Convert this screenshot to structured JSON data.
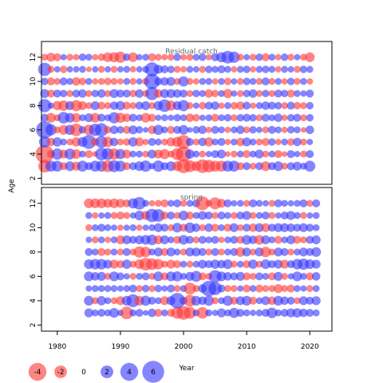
{
  "chart_data": {
    "type": "scatter",
    "subtype": "bubble",
    "ylabel": "Age",
    "xlabel": "Year",
    "xlim": [
      1977.5,
      2023.5
    ],
    "x_ticks": [
      "1980",
      "1990",
      "2000",
      "2010",
      "2020"
    ],
    "y_ticks": [
      "2",
      "4",
      "6",
      "8",
      "10",
      "12"
    ],
    "positive_color": "#3333ff",
    "negative_color": "#ff3333",
    "fill_opacity": 0.6,
    "legend": {
      "placement": "bottom-left",
      "entries": [
        {
          "label": "-4",
          "value": -4
        },
        {
          "label": "-2",
          "value": -2
        },
        {
          "label": "0",
          "value": 0
        },
        {
          "label": "2",
          "value": 2
        },
        {
          "label": "4",
          "value": 4
        },
        {
          "label": "6",
          "value": 6
        }
      ]
    },
    "panels": [
      {
        "title": "Residual catch",
        "ylim": [
          1.5,
          13.3
        ],
        "years": [
          1978,
          1979,
          1980,
          1981,
          1982,
          1983,
          1984,
          1985,
          1986,
          1987,
          1988,
          1989,
          1990,
          1991,
          1992,
          1993,
          1994,
          1995,
          1996,
          1997,
          1998,
          1999,
          2000,
          2001,
          2002,
          2003,
          2004,
          2005,
          2006,
          2007,
          2008,
          2009,
          2010,
          2011,
          2012,
          2013,
          2014,
          2015,
          2016,
          2017,
          2018,
          2019,
          2020
        ],
        "ages": [
          3,
          4,
          5,
          6,
          7,
          8,
          9,
          10,
          11,
          12
        ],
        "residuals": [
          [
            -2.0,
            1.5,
            1.5,
            -0.8,
            1.2,
            -1.0,
            1.5,
            0.8,
            1.5,
            1.5,
            -1.8,
            1.8,
            1.5,
            -0.8,
            0.8,
            1.2,
            1.6,
            0.5,
            1.6,
            0.8,
            1.2,
            -1.2,
            -2.5,
            -1.8,
            -1.2,
            -2.3,
            -2.0,
            -1.5,
            -1.5,
            1.5,
            1.5,
            -0.8,
            0.8,
            -0.6,
            0.8,
            -1.2,
            0.8,
            1.2,
            -0.6,
            0.8,
            1.0,
            0.6,
            1.5
          ],
          [
            -4.2,
            -0.8,
            1.6,
            -1.0,
            1.5,
            -1.2,
            0.6,
            -0.8,
            -0.4,
            2.0,
            1.8,
            -1.6,
            1.3,
            -1.0,
            0.6,
            0.6,
            -0.6,
            1.0,
            -1.0,
            -1.3,
            -0.6,
            -1.8,
            -2.9,
            1.1,
            0.6,
            -0.6,
            0.5,
            0.8,
            1.0,
            -0.4,
            -0.6,
            0.6,
            -0.8,
            0.6,
            1.0,
            -0.6,
            0.6,
            -0.8,
            -0.4,
            0.8,
            0.5,
            -0.6,
            0.8
          ],
          [
            1.6,
            -0.9,
            1.1,
            0.6,
            -0.6,
            -1.1,
            1.2,
            2.5,
            -0.8,
            1.8,
            -1.4,
            0.9,
            -0.6,
            -0.7,
            1.1,
            -1.0,
            -0.5,
            0.8,
            0.6,
            -0.6,
            -1.0,
            -1.3,
            -2.4,
            0.8,
            -0.6,
            0.9,
            -1.1,
            0.6,
            0.8,
            -0.5,
            0.6,
            -0.9,
            1.0,
            0.6,
            -0.6,
            -0.8,
            0.7,
            -0.5,
            0.6,
            -0.7,
            0.9,
            -0.6,
            0.5
          ],
          [
            3.7,
            1.6,
            -0.6,
            -1.2,
            1.3,
            -2.0,
            0.7,
            -1.4,
            1.9,
            2.2,
            -0.7,
            0.9,
            0.7,
            -0.8,
            1.0,
            0.7,
            0.4,
            -0.9,
            1.3,
            0.6,
            -0.8,
            0.8,
            1.2,
            0.4,
            0.7,
            0.9,
            -0.5,
            0.8,
            0.6,
            -0.5,
            0.6,
            0.9,
            -0.6,
            0.7,
            0.5,
            -0.6,
            0.8,
            0.6,
            -0.5,
            0.7,
            0.6,
            -0.4,
            0.9
          ],
          [
            0.8,
            -1.2,
            -0.6,
            1.7,
            1.2,
            -1.1,
            0.6,
            1.0,
            -1.2,
            0.8,
            0.6,
            1.6,
            -1.3,
            -0.9,
            0.8,
            0.6,
            -1.2,
            -0.8,
            0.5,
            0.6,
            0.5,
            0.7,
            0.6,
            -0.9,
            -0.7,
            0.5,
            0.6,
            -0.8,
            0.6,
            0.7,
            -0.6,
            0.7,
            0.8,
            0.7,
            -0.6,
            0.8,
            0.6,
            0.9,
            -0.5,
            0.7,
            0.8,
            -0.6,
            0.7
          ],
          [
            2.2,
            0.5,
            -1.1,
            -1.4,
            1.0,
            -1.6,
            -1.0,
            -0.6,
            1.0,
            -0.8,
            -0.6,
            0.9,
            1.1,
            -0.8,
            -0.6,
            0.8,
            1.0,
            -0.6,
            1.1,
            2.0,
            -1.3,
            1.0,
            1.6,
            -0.6,
            0.5,
            -0.7,
            0.8,
            0.9,
            -0.5,
            0.6,
            -0.7,
            -0.9,
            0.8,
            -0.5,
            0.6,
            0.9,
            0.8,
            0.7,
            -0.6,
            0.8,
            -0.7,
            -0.6,
            0.7
          ],
          [
            1.0,
            -0.8,
            0.8,
            0.7,
            -0.6,
            0.8,
            0.9,
            -0.6,
            0.7,
            0.9,
            -0.6,
            1.0,
            0.8,
            0.8,
            -0.7,
            0.9,
            -0.6,
            2.2,
            -0.9,
            1.0,
            1.0,
            0.9,
            0.8,
            -0.6,
            0.7,
            0.6,
            -0.9,
            -0.7,
            0.6,
            -1.1,
            0.5,
            -0.6,
            0.7,
            0.9,
            -0.6,
            0.7,
            -0.6,
            0.8,
            0.7,
            -0.8,
            0.6,
            0.5,
            0.8
          ],
          [
            0.7,
            -0.8,
            -0.6,
            0.8,
            0.6,
            -0.9,
            -0.7,
            0.6,
            -0.5,
            -0.6,
            -0.7,
            -0.6,
            -0.5,
            0.6,
            -0.6,
            0.5,
            -0.6,
            3.0,
            0.8,
            0.9,
            1.0,
            -0.6,
            1.3,
            -0.6,
            -0.5,
            0.6,
            0.6,
            -0.5,
            0.6,
            -0.7,
            0.5,
            -0.6,
            0.7,
            0.6,
            -0.6,
            0.8,
            -0.6,
            0.6,
            -0.5,
            0.7,
            -0.6,
            0.6,
            -0.5
          ],
          [
            2.2,
            -0.6,
            0.5,
            -0.7,
            0.5,
            0.5,
            0.6,
            -0.4,
            0.5,
            -0.6,
            0.5,
            -0.6,
            0.5,
            0.6,
            -0.5,
            0.5,
            0.6,
            2.5,
            1.0,
            0.8,
            0.7,
            -0.6,
            -0.5,
            0.6,
            0.5,
            -0.6,
            0.7,
            0.6,
            0.8,
            0.6,
            -0.5,
            0.6,
            0.7,
            -0.5,
            0.6,
            0.7,
            0.6,
            -0.5,
            0.6,
            0.5,
            -0.6,
            0.7,
            0.6
          ],
          [
            -0.6,
            -1.0,
            -0.8,
            0.5,
            -0.6,
            -0.5,
            0.7,
            0.6,
            -0.5,
            -0.7,
            -1.2,
            -1.3,
            -1.6,
            0.7,
            -1.2,
            0.5,
            0.6,
            -0.8,
            -0.6,
            -0.5,
            -0.6,
            0.7,
            -0.5,
            -0.6,
            0.6,
            0.7,
            -0.5,
            0.8,
            1.3,
            2.0,
            1.6,
            -0.6,
            0.5,
            -0.6,
            0.7,
            -0.8,
            0.6,
            -0.5,
            0.7,
            -0.6,
            0.5,
            -0.6,
            -1.2
          ]
        ]
      },
      {
        "title": "spring",
        "ylim": [
          1.5,
          13.3
        ],
        "years": [
          1985,
          1986,
          1987,
          1988,
          1989,
          1990,
          1991,
          1992,
          1993,
          1994,
          1995,
          1996,
          1997,
          1998,
          1999,
          2000,
          2001,
          2002,
          2003,
          2004,
          2005,
          2006,
          2007,
          2008,
          2009,
          2010,
          2011,
          2012,
          2013,
          2014,
          2015,
          2016,
          2017,
          2018,
          2019,
          2020,
          2021
        ],
        "ages": [
          3,
          4,
          5,
          6,
          7,
          8,
          9,
          10,
          11,
          12
        ],
        "residuals": [
          [
            1.0,
            0.6,
            0.8,
            0.6,
            1.2,
            0.5,
            -2.0,
            0.6,
            0.8,
            0.4,
            0.9,
            -0.8,
            0.6,
            -0.8,
            -1.8,
            -2.4,
            -1.8,
            0.6,
            -1.7,
            0.6,
            0.5,
            1.0,
            0.6,
            1.3,
            0.8,
            0.6,
            0.5,
            0.6,
            0.8,
            1.4,
            0.6,
            0.8,
            1.0,
            1.1,
            0.9,
            0.8,
            0.6
          ],
          [
            1.2,
            -0.6,
            1.1,
            0.6,
            -0.6,
            -1.0,
            1.2,
            2.1,
            -1.2,
            1.3,
            0.8,
            0.6,
            -1.0,
            1.0,
            3.0,
            0.8,
            -1.8,
            1.2,
            0.9,
            1.3,
            -0.6,
            0.6,
            1.3,
            -0.8,
            1.0,
            1.2,
            -0.8,
            0.6,
            1.0,
            -0.9,
            1.2,
            0.9,
            0.8,
            -0.6,
            1.0,
            0.8,
            1.0
          ],
          [
            0.5,
            0.6,
            0.6,
            0.6,
            0.6,
            0.5,
            0.6,
            0.8,
            -0.6,
            0.7,
            -0.6,
            0.7,
            0.5,
            0.8,
            -0.6,
            0.6,
            -1.8,
            -0.6,
            0.9,
            3.0,
            2.2,
            0.8,
            -0.6,
            -0.6,
            0.5,
            -0.8,
            0.6,
            -0.8,
            -0.6,
            -0.6,
            -1.0,
            -0.6,
            -0.8,
            0.6,
            0.5,
            -0.6,
            0.6
          ],
          [
            1.2,
            0.9,
            1.0,
            -0.6,
            1.2,
            0.8,
            0.5,
            -0.6,
            0.6,
            0.8,
            -0.6,
            1.2,
            -0.8,
            1.2,
            1.3,
            0.6,
            1.0,
            1.5,
            -0.8,
            -0.6,
            2.0,
            1.2,
            0.9,
            0.8,
            1.0,
            -0.8,
            -0.6,
            0.8,
            0.6,
            -0.8,
            1.0,
            -0.6,
            0.5,
            1.2,
            0.6,
            -0.8,
            0.9
          ],
          [
            1.2,
            1.4,
            1.4,
            1.0,
            -1.0,
            -0.8,
            1.1,
            -0.6,
            -1.2,
            -2.0,
            -1.7,
            -1.4,
            -0.6,
            -1.0,
            -0.8,
            0.6,
            -0.6,
            0.6,
            1.0,
            0.8,
            1.1,
            0.9,
            1.2,
            -0.6,
            0.6,
            -0.8,
            1.1,
            -0.6,
            1.2,
            0.8,
            1.0,
            -1.0,
            0.8,
            1.4,
            1.6,
            1.2,
            1.0
          ],
          [
            0.8,
            0.6,
            -0.8,
            -0.6,
            0.6,
            -0.6,
            0.8,
            -0.6,
            -1.6,
            -1.4,
            0.6,
            1.0,
            -0.8,
            1.0,
            0.6,
            -0.6,
            1.0,
            1.0,
            0.8,
            -0.6,
            0.8,
            -0.6,
            0.6,
            0.8,
            -1.2,
            1.0,
            -0.6,
            1.0,
            -1.4,
            -0.6,
            1.0,
            0.8,
            -0.6,
            0.6,
            1.0,
            0.8,
            1.2
          ],
          [
            0.5,
            -0.6,
            0.6,
            -0.5,
            0.6,
            -1.0,
            1.0,
            0.8,
            1.0,
            1.2,
            1.4,
            -1.0,
            1.0,
            0.6,
            -0.8,
            1.2,
            0.8,
            -0.6,
            0.8,
            0.6,
            0.8,
            -0.5,
            0.6,
            0.8,
            -0.8,
            1.2,
            0.9,
            -1.2,
            1.0,
            0.6,
            -0.8,
            0.6,
            1.0,
            -0.8,
            -0.6,
            0.8,
            1.0
          ],
          [
            -0.6,
            0.6,
            0.8,
            0.6,
            0.5,
            -0.5,
            0.5,
            0.6,
            -0.5,
            0.5,
            0.6,
            1.0,
            0.8,
            -0.6,
            1.2,
            -0.8,
            1.4,
            0.9,
            -0.6,
            0.9,
            -0.8,
            0.6,
            -0.8,
            1.0,
            -0.6,
            0.8,
            -0.9,
            1.0,
            -1.0,
            0.8,
            1.0,
            1.0,
            0.9,
            0.8,
            1.0,
            0.8,
            0.6
          ],
          [
            0.6,
            -0.5,
            0.5,
            0.6,
            -0.6,
            -0.8,
            -0.6,
            0.5,
            1.2,
            -1.0,
            2.2,
            2.0,
            -0.8,
            0.8,
            -0.6,
            1.2,
            -0.8,
            0.6,
            1.0,
            0.8,
            -0.6,
            0.8,
            0.6,
            -0.6,
            0.8,
            1.0,
            -0.6,
            0.6,
            0.8,
            -0.6,
            0.5,
            0.8,
            1.0,
            0.6,
            -0.6,
            0.5,
            0.6
          ],
          [
            -1.2,
            -1.2,
            -1.2,
            -1.0,
            -1.2,
            -1.0,
            -0.8,
            1.3,
            2.0,
            0.6,
            -0.5,
            -0.6,
            -0.8,
            0.6,
            0.8,
            -0.6,
            0.6,
            0.8,
            -2.4,
            -0.6,
            -1.8,
            -1.0,
            0.8,
            0.5,
            0.6,
            -0.6,
            0.8,
            0.6,
            0.5,
            -0.6,
            0.8,
            0.6,
            0.5,
            0.6,
            0.8,
            -0.6,
            0.8
          ]
        ]
      }
    ]
  }
}
